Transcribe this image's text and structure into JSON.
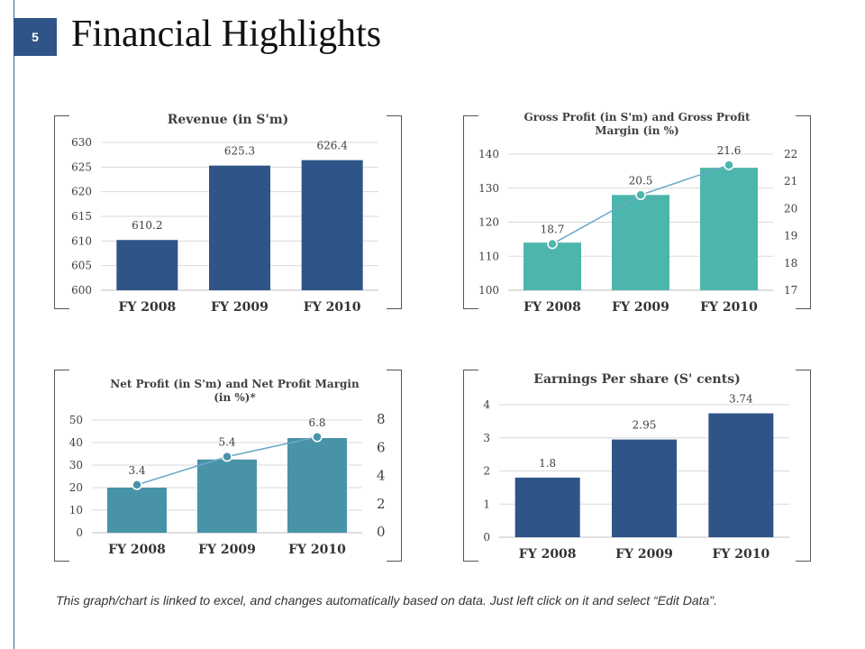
{
  "slide": {
    "page_number": "5",
    "title": "Financial Highlights",
    "footnote": "This graph/chart is linked to excel, and changes automatically based on data. Just left click on it and select “Edit Data”."
  },
  "colors": {
    "accent": "#2f5487",
    "teal": "#4db6ac",
    "steel_teal": "#4893a8",
    "navy": "#2f5487"
  },
  "chart_data": [
    {
      "type": "bar",
      "title": "Revenue (in S'm)",
      "categories": [
        "FY 2008",
        "FY 2009",
        "FY 2010"
      ],
      "values": [
        610.2,
        625.3,
        626.4
      ],
      "data_labels": [
        "610.2",
        "625.3",
        "626.4"
      ],
      "ylim": [
        600,
        630
      ],
      "y_ticks": [
        "600",
        "605",
        "610",
        "615",
        "620",
        "625",
        "630"
      ],
      "grid": true,
      "color": "#2f5487"
    },
    {
      "type": "bar+line",
      "title": "Gross Profit (in S'm) and Gross Profit Margin (in %)",
      "categories": [
        "FY 2008",
        "FY 2009",
        "FY 2010"
      ],
      "series": [
        {
          "kind": "bar",
          "axis": "left",
          "values": [
            114,
            128,
            136
          ]
        },
        {
          "kind": "line",
          "axis": "right",
          "values": [
            18.7,
            20.5,
            21.6
          ],
          "labels": [
            "18.7",
            "20.5",
            "21.6"
          ]
        }
      ],
      "ylim": [
        100,
        140
      ],
      "y_ticks": [
        "100",
        "110",
        "120",
        "130",
        "140"
      ],
      "y2lim": [
        17,
        22
      ],
      "y2_ticks": [
        "17",
        "18",
        "19",
        "20",
        "21",
        "22"
      ],
      "grid": true,
      "color": "#4db6ac"
    },
    {
      "type": "bar+line",
      "title": "Net Profit (in S'm) and Net Profit Margin (in %)*",
      "categories": [
        "FY 2008",
        "FY 2009",
        "FY 2010"
      ],
      "series": [
        {
          "kind": "bar",
          "axis": "left",
          "values": [
            20,
            32.5,
            42
          ]
        },
        {
          "kind": "line",
          "axis": "right",
          "values": [
            3.4,
            5.4,
            6.8
          ],
          "labels": [
            "3.4",
            "5.4",
            "6.8"
          ]
        }
      ],
      "ylim": [
        0,
        50
      ],
      "y_ticks": [
        "0",
        "10",
        "20",
        "30",
        "40",
        "50"
      ],
      "y2lim": [
        0,
        8
      ],
      "y2_ticks": [
        "0",
        "2",
        "4",
        "6",
        "8"
      ],
      "grid": true,
      "color": "#4893a8"
    },
    {
      "type": "bar",
      "title": "Earnings Per share (S' cents)",
      "categories": [
        "FY 2008",
        "FY 2009",
        "FY 2010"
      ],
      "values": [
        1.8,
        2.95,
        3.74
      ],
      "data_labels": [
        "1.8",
        "2.95",
        "3.74"
      ],
      "ylim": [
        0,
        4
      ],
      "y_ticks": [
        "0",
        "1",
        "2",
        "3",
        "4"
      ],
      "grid": true,
      "color": "#2f5487"
    }
  ]
}
